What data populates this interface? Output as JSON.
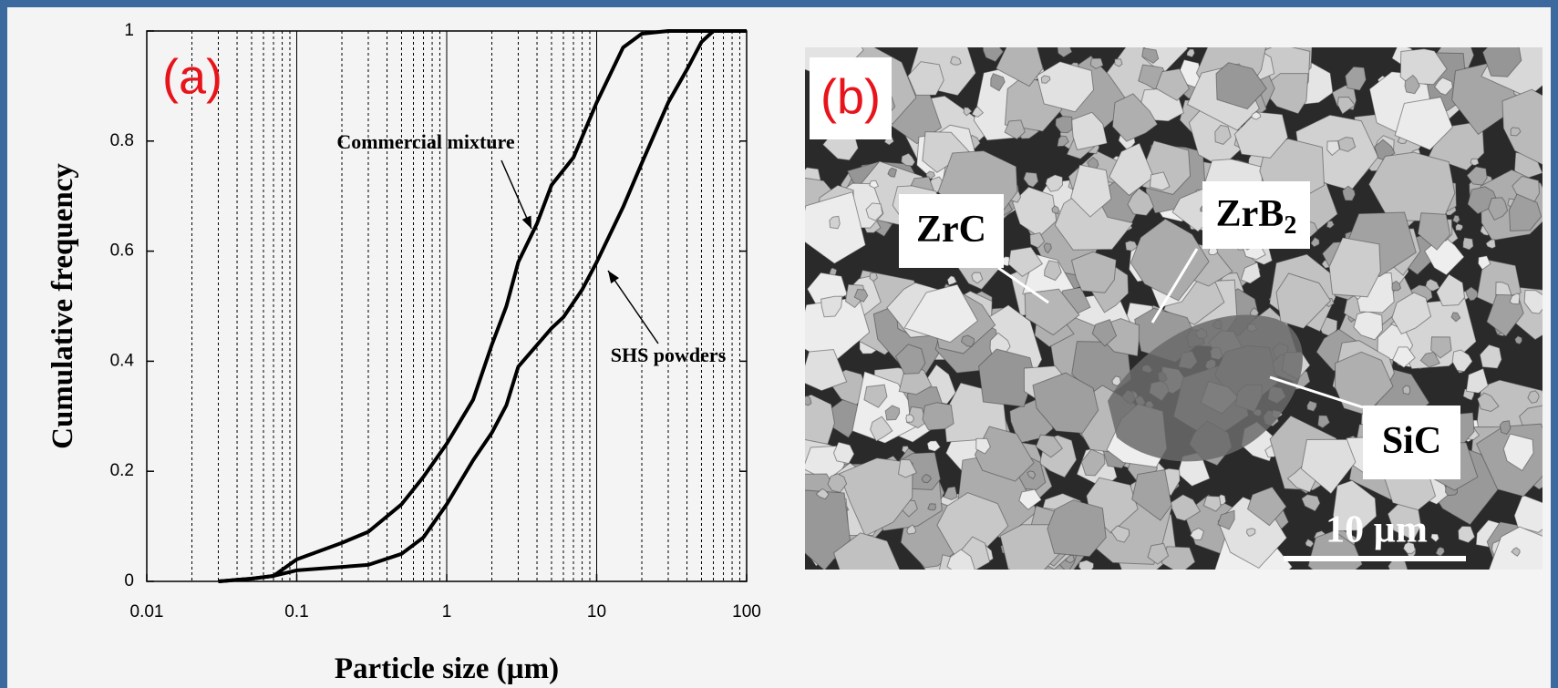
{
  "chart_data": {
    "type": "line",
    "panel_label": "(a)",
    "xlabel": "Particle size (µm)",
    "ylabel": "Cumulative frequency",
    "xscale": "log",
    "xlim": [
      0.01,
      100
    ],
    "ylim": [
      0,
      1
    ],
    "xticks": [
      0.01,
      0.1,
      1,
      10,
      100
    ],
    "yticks": [
      0,
      0.2,
      0.4,
      0.6,
      0.8,
      1
    ],
    "grid": true,
    "series": [
      {
        "name": "Commercial mixture",
        "color": "#000000",
        "x": [
          0.03,
          0.05,
          0.07,
          0.1,
          0.2,
          0.3,
          0.5,
          0.7,
          1,
          1.5,
          2,
          2.5,
          3,
          4,
          5,
          7,
          10,
          15,
          20,
          30,
          100
        ],
        "values": [
          0,
          0.005,
          0.01,
          0.04,
          0.07,
          0.09,
          0.14,
          0.19,
          0.25,
          0.33,
          0.43,
          0.5,
          0.58,
          0.65,
          0.72,
          0.77,
          0.87,
          0.97,
          0.995,
          1,
          1
        ]
      },
      {
        "name": "SHS powders",
        "color": "#000000",
        "x": [
          0.03,
          0.05,
          0.07,
          0.1,
          0.3,
          0.5,
          0.7,
          1,
          1.5,
          2,
          2.5,
          3,
          5,
          6,
          8,
          10,
          15,
          20,
          30,
          40,
          50,
          60,
          100
        ],
        "values": [
          0,
          0.005,
          0.01,
          0.02,
          0.03,
          0.05,
          0.08,
          0.14,
          0.22,
          0.27,
          0.32,
          0.39,
          0.46,
          0.48,
          0.53,
          0.58,
          0.68,
          0.76,
          0.87,
          0.93,
          0.98,
          1,
          1
        ]
      }
    ]
  },
  "image": {
    "panel_label": "(b)",
    "labels": [
      "ZrC",
      {
        "text": "ZrB",
        "sub": "2"
      },
      "SiC"
    ],
    "scale_bar": "10 µm"
  }
}
